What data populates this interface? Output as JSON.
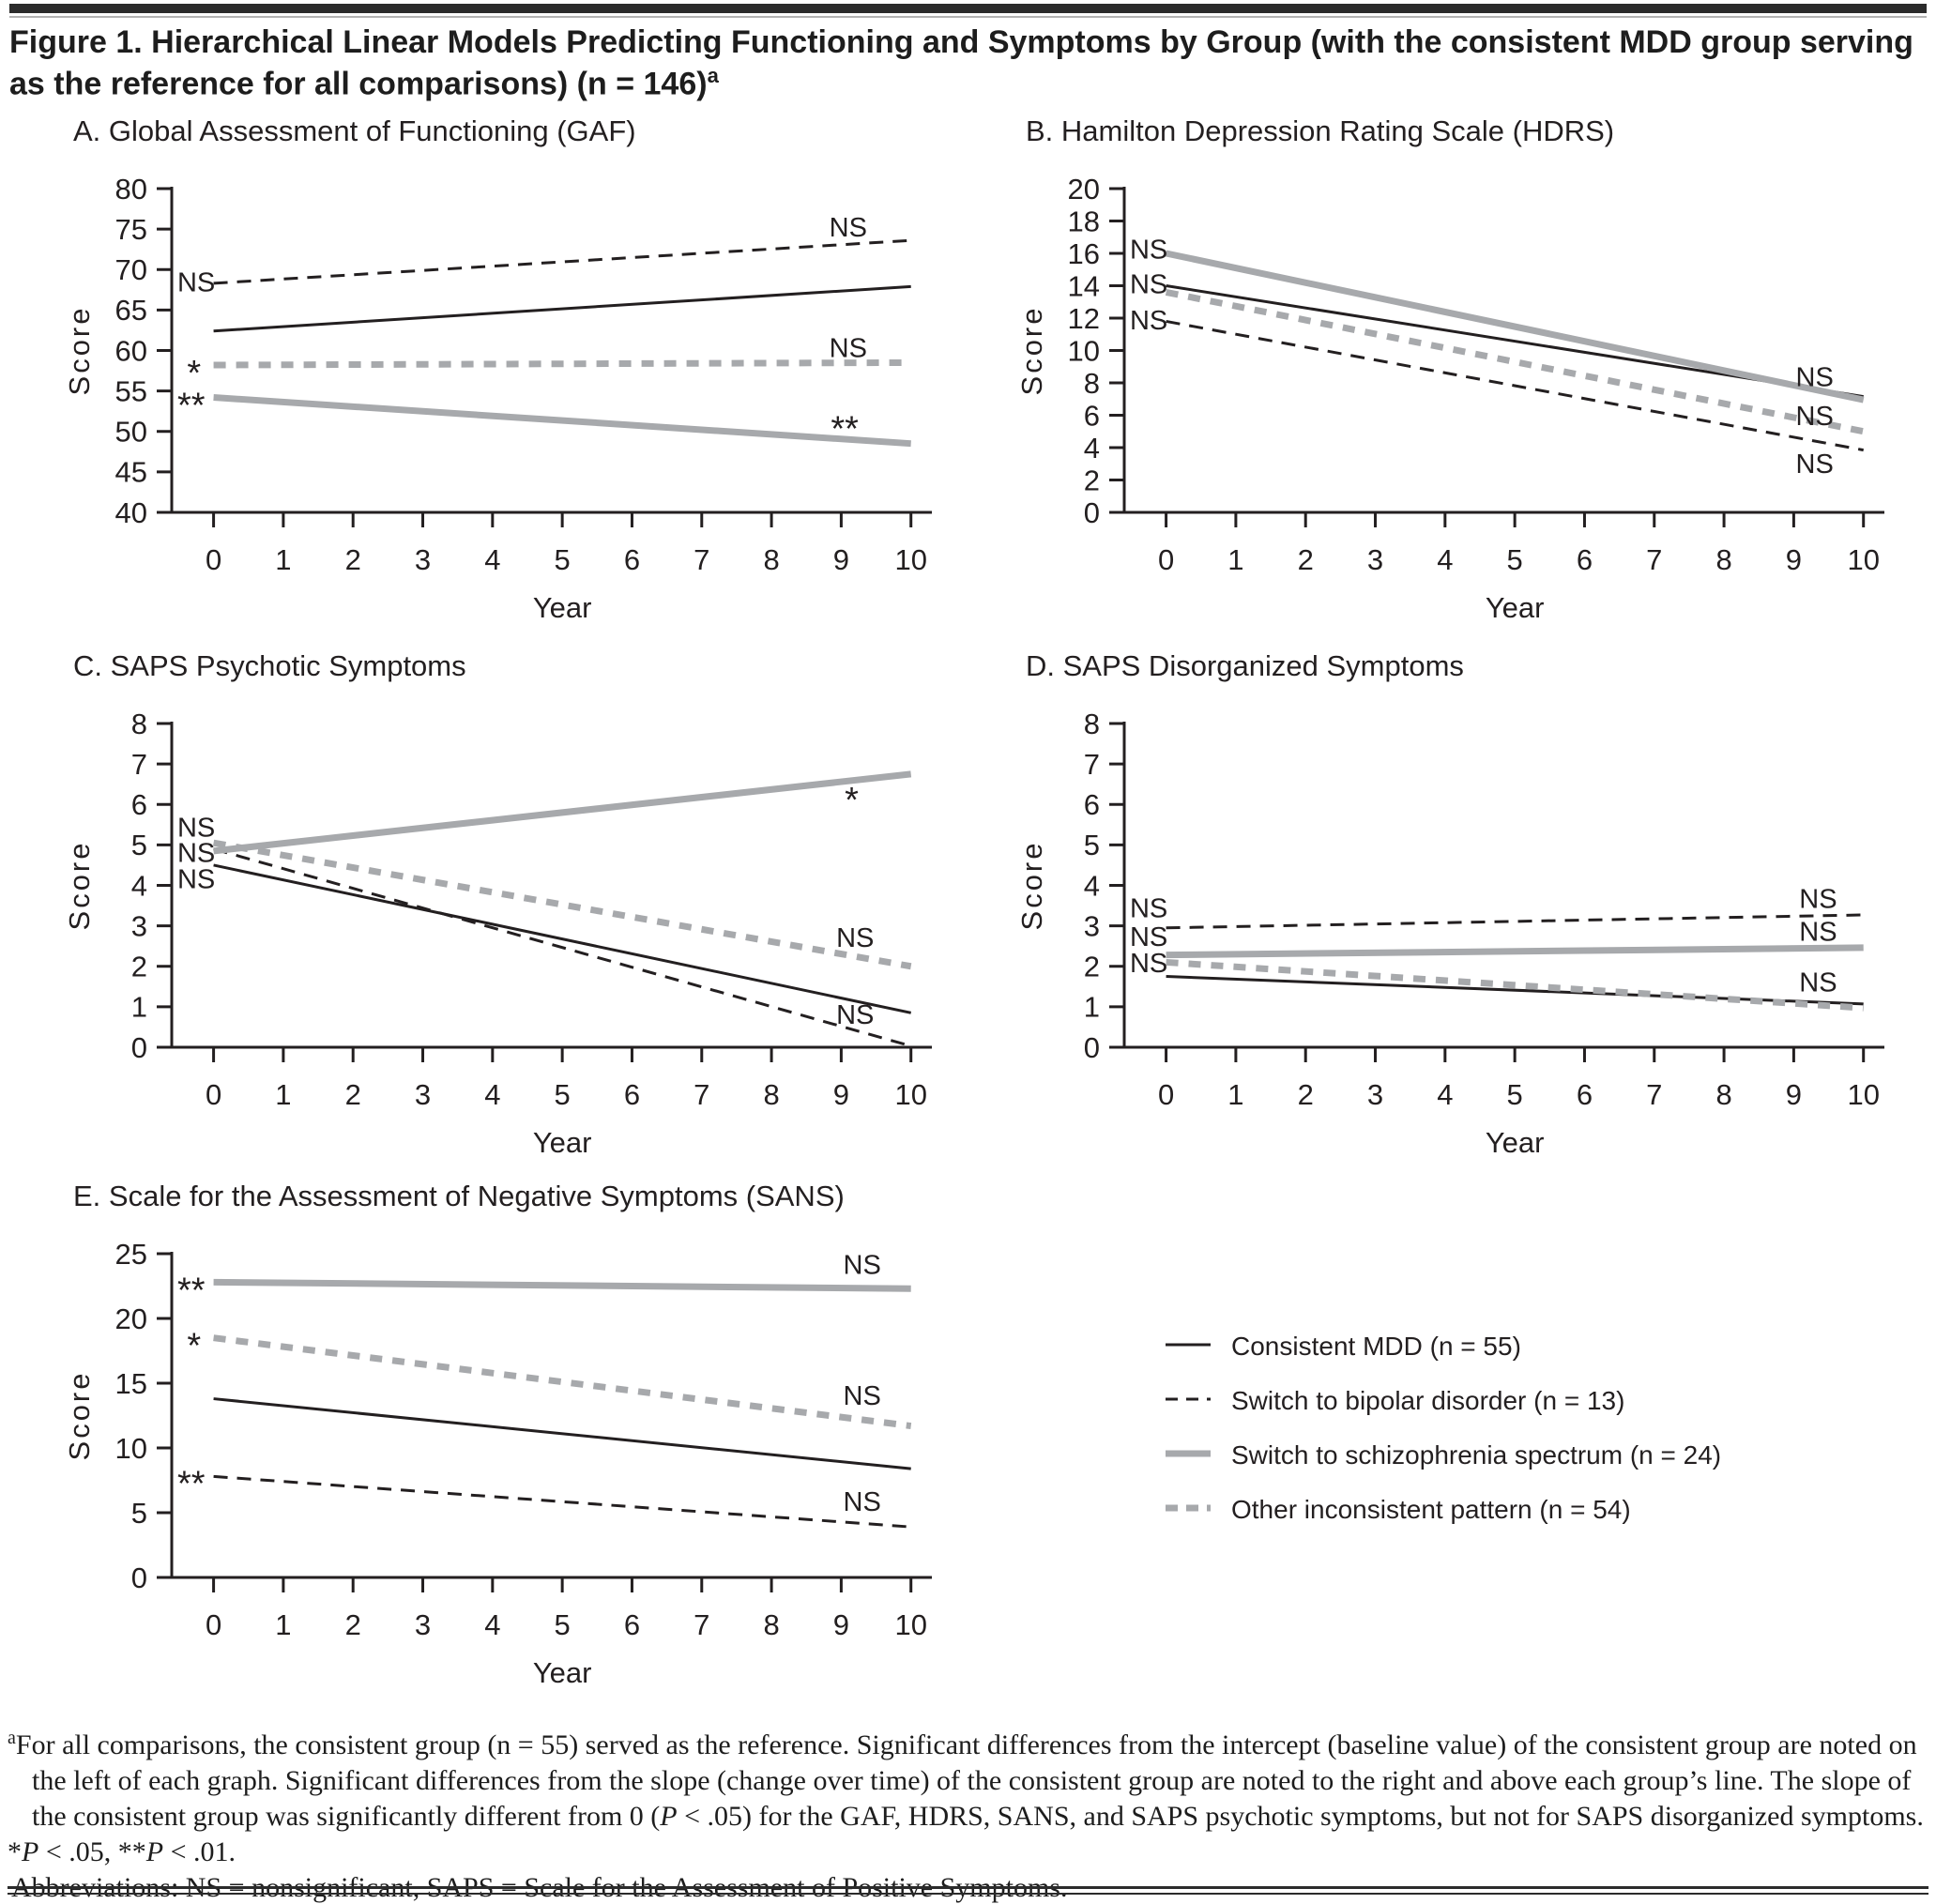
{
  "figure": {
    "title": "Figure 1. Hierarchical Linear Models Predicting Functioning and Symptoms by Group (with the consistent MDD group serving as the reference for all comparisons) (n = 146)",
    "title_superscript": "a"
  },
  "colors": {
    "black": "#231f20",
    "gray": "#a7a9ac",
    "bar": "#2b2b2b"
  },
  "series_styles": {
    "consistent": {
      "color": "#231f20",
      "width": 3,
      "dash": ""
    },
    "bipolar": {
      "color": "#231f20",
      "width": 3,
      "dash": "15 10"
    },
    "other": {
      "color": "#a7a9ac",
      "width": 7,
      "dash": "13 11"
    },
    "schizophrenia": {
      "color": "#a7a9ac",
      "width": 7,
      "dash": ""
    }
  },
  "legend": {
    "items": [
      {
        "key": "consistent",
        "label": "Consistent MDD (n = 55)"
      },
      {
        "key": "bipolar",
        "label": "Switch to bipolar disorder (n = 13)"
      },
      {
        "key": "schizophrenia",
        "label": "Switch to schizophrenia spectrum (n = 24)"
      },
      {
        "key": "other",
        "label": "Other inconsistent pattern (n = 54)"
      }
    ]
  },
  "chart_data": [
    {
      "id": "a",
      "type": "line",
      "title": "A. Global Assessment of Functioning (GAF)",
      "xlabel": "Year",
      "ylabel": "Score",
      "xlim": [
        0,
        10
      ],
      "xticks": [
        0,
        1,
        2,
        3,
        4,
        5,
        6,
        7,
        8,
        9,
        10
      ],
      "ylim": [
        40,
        80
      ],
      "yticks": [
        40,
        45,
        50,
        55,
        60,
        65,
        70,
        75,
        80
      ],
      "series": [
        {
          "key": "consistent",
          "name": "Consistent MDD",
          "x": [
            0,
            10
          ],
          "y": [
            62.4,
            67.9
          ]
        },
        {
          "key": "bipolar",
          "name": "Switch to bipolar disorder",
          "x": [
            0,
            10
          ],
          "y": [
            68.3,
            73.6
          ]
        },
        {
          "key": "other",
          "name": "Other inconsistent pattern",
          "x": [
            0,
            10
          ],
          "y": [
            58.2,
            58.5
          ]
        },
        {
          "key": "schizophrenia",
          "name": "Switch to schizophrenia spectrum",
          "x": [
            0,
            10
          ],
          "y": [
            54.2,
            48.5
          ]
        }
      ],
      "annotations": [
        {
          "text": "NS",
          "x": -0.52,
          "y": 68.5,
          "anchor": "start",
          "kind": "text"
        },
        {
          "text": "*",
          "x": -0.38,
          "y": 58.2,
          "anchor": "start",
          "kind": "stars"
        },
        {
          "text": "**",
          "x": -0.52,
          "y": 54.2,
          "anchor": "start",
          "kind": "stars"
        },
        {
          "text": "NS",
          "x": 9.1,
          "y": 75.3,
          "anchor": "middle",
          "kind": "text"
        },
        {
          "text": "NS",
          "x": 9.1,
          "y": 60.4,
          "anchor": "middle",
          "kind": "text"
        },
        {
          "text": "**",
          "x": 9.05,
          "y": 51.3,
          "anchor": "middle",
          "kind": "stars"
        }
      ]
    },
    {
      "id": "b",
      "type": "line",
      "title": "B. Hamilton Depression Rating Scale (HDRS)",
      "xlabel": "Year",
      "ylabel": "Score",
      "xlim": [
        0,
        10
      ],
      "xticks": [
        0,
        1,
        2,
        3,
        4,
        5,
        6,
        7,
        8,
        9,
        10
      ],
      "ylim": [
        0,
        20
      ],
      "yticks": [
        0,
        2,
        4,
        6,
        8,
        10,
        12,
        14,
        16,
        18,
        20
      ],
      "series": [
        {
          "key": "consistent",
          "name": "Consistent MDD",
          "x": [
            0,
            10
          ],
          "y": [
            14.0,
            7.15
          ]
        },
        {
          "key": "bipolar",
          "name": "Switch to bipolar disorder",
          "x": [
            0,
            10
          ],
          "y": [
            11.8,
            3.85
          ]
        },
        {
          "key": "other",
          "name": "Other inconsistent pattern",
          "x": [
            0,
            10
          ],
          "y": [
            13.6,
            5.0
          ]
        },
        {
          "key": "schizophrenia",
          "name": "Switch to schizophrenia spectrum",
          "x": [
            0,
            10
          ],
          "y": [
            16.0,
            6.95
          ]
        }
      ],
      "annotations": [
        {
          "text": "NS",
          "x": -0.52,
          "y": 16.3,
          "anchor": "start",
          "kind": "text"
        },
        {
          "text": "NS",
          "x": -0.52,
          "y": 14.15,
          "anchor": "start",
          "kind": "text"
        },
        {
          "text": "NS",
          "x": -0.52,
          "y": 11.9,
          "anchor": "start",
          "kind": "text"
        },
        {
          "text": "NS",
          "x": 9.3,
          "y": 8.4,
          "anchor": "middle",
          "kind": "text"
        },
        {
          "text": "NS",
          "x": 9.3,
          "y": 6.0,
          "anchor": "middle",
          "kind": "text"
        },
        {
          "text": "NS",
          "x": 9.3,
          "y": 3.05,
          "anchor": "middle",
          "kind": "text"
        }
      ]
    },
    {
      "id": "c",
      "type": "line",
      "title": "C. SAPS Psychotic Symptoms",
      "xlabel": "Year",
      "ylabel": "Score",
      "xlim": [
        0,
        10
      ],
      "xticks": [
        0,
        1,
        2,
        3,
        4,
        5,
        6,
        7,
        8,
        9,
        10
      ],
      "ylim": [
        0,
        8
      ],
      "yticks": [
        0,
        1,
        2,
        3,
        4,
        5,
        6,
        7,
        8
      ],
      "series": [
        {
          "key": "consistent",
          "name": "Consistent MDD",
          "x": [
            0,
            10
          ],
          "y": [
            4.5,
            0.85
          ]
        },
        {
          "key": "bipolar",
          "name": "Switch to bipolar disorder",
          "x": [
            0,
            10
          ],
          "y": [
            4.9,
            0.03
          ]
        },
        {
          "key": "other",
          "name": "Other inconsistent pattern",
          "x": [
            0,
            10
          ],
          "y": [
            5.05,
            2.0
          ]
        },
        {
          "key": "schizophrenia",
          "name": "Switch to schizophrenia spectrum",
          "x": [
            0,
            10
          ],
          "y": [
            4.85,
            6.75
          ]
        }
      ],
      "annotations": [
        {
          "text": "NS",
          "x": -0.52,
          "y": 5.45,
          "anchor": "start",
          "kind": "text"
        },
        {
          "text": "NS",
          "x": -0.52,
          "y": 4.82,
          "anchor": "start",
          "kind": "text"
        },
        {
          "text": "NS",
          "x": -0.52,
          "y": 4.17,
          "anchor": "start",
          "kind": "text"
        },
        {
          "text": "*",
          "x": 9.15,
          "y": 6.3,
          "anchor": "middle",
          "kind": "stars"
        },
        {
          "text": "NS",
          "x": 9.2,
          "y": 2.72,
          "anchor": "middle",
          "kind": "text"
        },
        {
          "text": "NS",
          "x": 9.2,
          "y": 0.82,
          "anchor": "middle",
          "kind": "text"
        }
      ]
    },
    {
      "id": "d",
      "type": "line",
      "title": "D. SAPS Disorganized Symptoms",
      "xlabel": "Year",
      "ylabel": "Score",
      "xlim": [
        0,
        10
      ],
      "xticks": [
        0,
        1,
        2,
        3,
        4,
        5,
        6,
        7,
        8,
        9,
        10
      ],
      "ylim": [
        0,
        8
      ],
      "yticks": [
        0,
        1,
        2,
        3,
        4,
        5,
        6,
        7,
        8
      ],
      "series": [
        {
          "key": "consistent",
          "name": "Consistent MDD",
          "x": [
            0,
            10
          ],
          "y": [
            1.75,
            1.07
          ]
        },
        {
          "key": "bipolar",
          "name": "Switch to bipolar disorder",
          "x": [
            0,
            10
          ],
          "y": [
            2.95,
            3.27
          ]
        },
        {
          "key": "other",
          "name": "Other inconsistent pattern",
          "x": [
            0,
            10
          ],
          "y": [
            2.1,
            0.97
          ]
        },
        {
          "key": "schizophrenia",
          "name": "Switch to schizophrenia spectrum",
          "x": [
            0,
            10
          ],
          "y": [
            2.28,
            2.46
          ]
        }
      ],
      "annotations": [
        {
          "text": "NS",
          "x": -0.52,
          "y": 3.45,
          "anchor": "start",
          "kind": "text"
        },
        {
          "text": "NS",
          "x": -0.52,
          "y": 2.75,
          "anchor": "start",
          "kind": "text"
        },
        {
          "text": "NS",
          "x": -0.52,
          "y": 2.1,
          "anchor": "start",
          "kind": "text"
        },
        {
          "text": "NS",
          "x": 9.35,
          "y": 3.68,
          "anchor": "middle",
          "kind": "text"
        },
        {
          "text": "NS",
          "x": 9.35,
          "y": 2.87,
          "anchor": "middle",
          "kind": "text"
        },
        {
          "text": "NS",
          "x": 9.35,
          "y": 1.62,
          "anchor": "middle",
          "kind": "text"
        }
      ]
    },
    {
      "id": "e",
      "type": "line",
      "title": "E. Scale for the Assessment of Negative Symptoms (SANS)",
      "xlabel": "Year",
      "ylabel": "Score",
      "xlim": [
        0,
        10
      ],
      "xticks": [
        0,
        1,
        2,
        3,
        4,
        5,
        6,
        7,
        8,
        9,
        10
      ],
      "ylim": [
        0,
        25
      ],
      "yticks": [
        0,
        5,
        10,
        15,
        20,
        25
      ],
      "series": [
        {
          "key": "consistent",
          "name": "Consistent MDD",
          "x": [
            0,
            10
          ],
          "y": [
            13.8,
            8.4
          ]
        },
        {
          "key": "bipolar",
          "name": "Switch to bipolar disorder",
          "x": [
            0,
            10
          ],
          "y": [
            7.8,
            3.9
          ]
        },
        {
          "key": "other",
          "name": "Other inconsistent pattern",
          "x": [
            0,
            10
          ],
          "y": [
            18.5,
            11.7
          ]
        },
        {
          "key": "schizophrenia",
          "name": "Switch to schizophrenia spectrum",
          "x": [
            0,
            10
          ],
          "y": [
            22.8,
            22.3
          ]
        }
      ],
      "annotations": [
        {
          "text": "**",
          "x": -0.52,
          "y": 22.8,
          "anchor": "start",
          "kind": "stars"
        },
        {
          "text": "*",
          "x": -0.38,
          "y": 18.5,
          "anchor": "start",
          "kind": "stars"
        },
        {
          "text": "**",
          "x": -0.52,
          "y": 7.85,
          "anchor": "start",
          "kind": "stars"
        },
        {
          "text": "NS",
          "x": 9.3,
          "y": 24.2,
          "anchor": "middle",
          "kind": "text"
        },
        {
          "text": "NS",
          "x": 9.3,
          "y": 14.1,
          "anchor": "middle",
          "kind": "text"
        },
        {
          "text": "NS",
          "x": 9.3,
          "y": 5.9,
          "anchor": "middle",
          "kind": "text"
        }
      ]
    }
  ],
  "footnote": {
    "sup": "a",
    "text1": "For all comparisons, the consistent group (n = 55) served as the reference. Significant differences from the intercept (baseline value) of the consistent group are noted on the left of each graph. Significant differences from the slope (change over time) of the consistent group are noted to the right and above each group’s line. The slope of the consistent group was significantly different from 0 (",
    "p_italic1": "P",
    "text2": " < .05) for the GAF, HDRS, SANS, and SAPS psychotic symptoms, but not for SAPS disorganized symptoms.",
    "sig": {
      "star1": "*",
      "p1": "P",
      "mid": " < .05, ",
      "star2": "**",
      "p2": "P",
      "end": " < .01."
    },
    "abbrev": "Abbreviations: NS = nonsignificant, SAPS = Scale for the Assessment of Positive Symptoms."
  }
}
